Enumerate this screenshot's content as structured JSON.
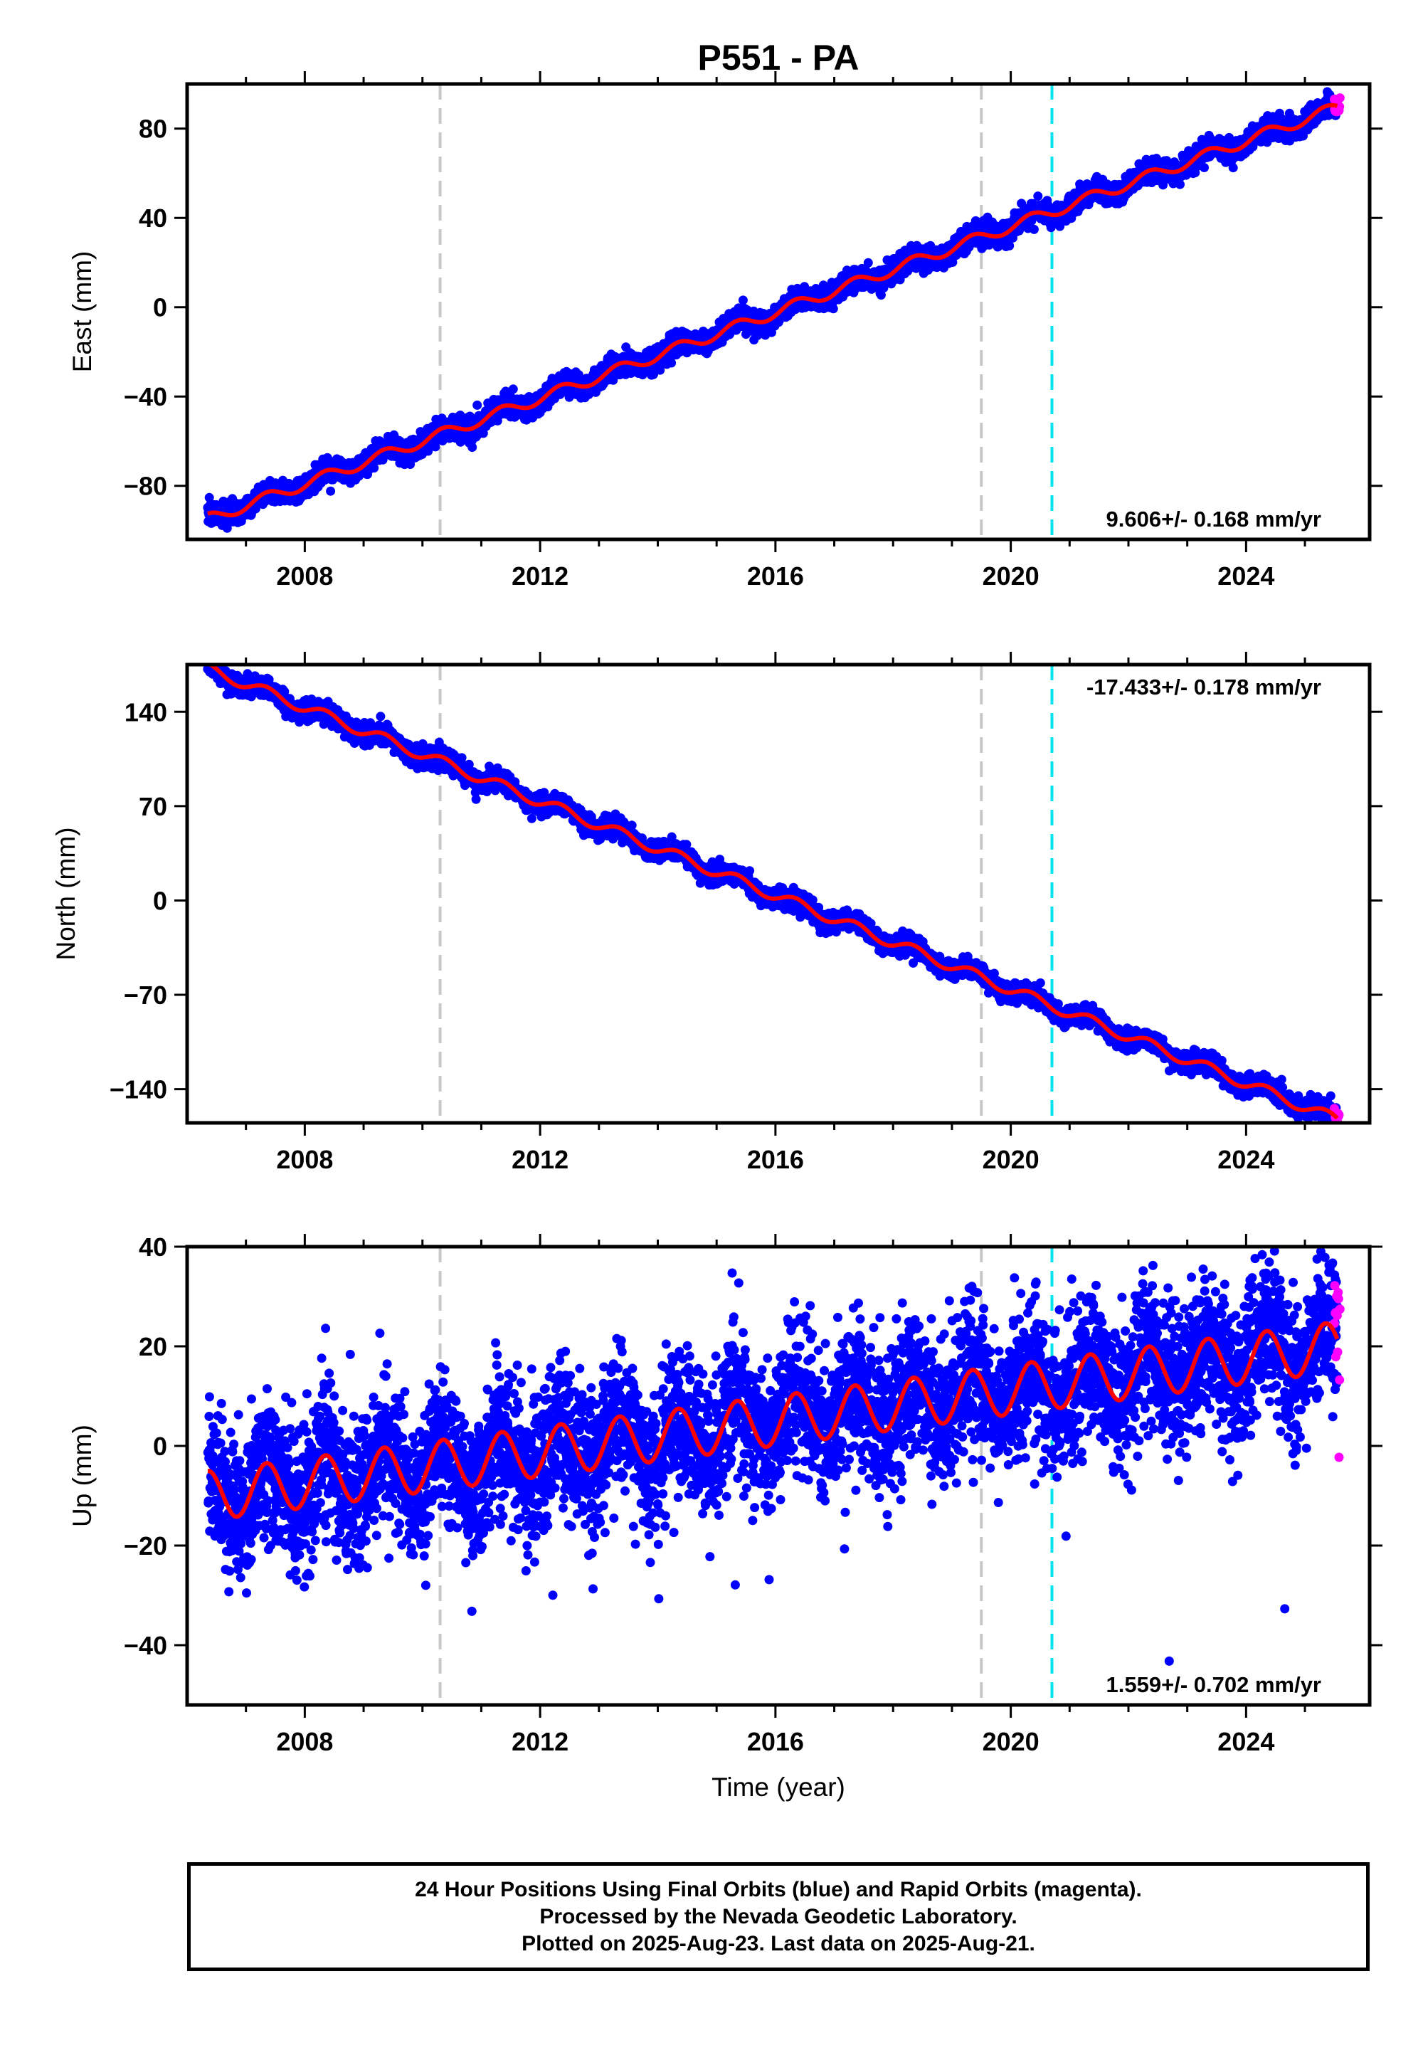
{
  "title": "P551 - PA",
  "footer": {
    "line1": "24 Hour Positions Using Final Orbits (blue) and Rapid Orbits (magenta).",
    "line2": "Processed by the Nevada Geodetic Laboratory.",
    "line3": "Plotted on 2025-Aug-23. Last data on 2025-Aug-21."
  },
  "chart_data": [
    {
      "type": "scatter",
      "component": "east",
      "ylabel": "East (mm)",
      "xlabel": "",
      "xlim": [
        2006.0,
        2026.1
      ],
      "ylim": [
        -104,
        100
      ],
      "xticks": [
        "2008",
        "2012",
        "2016",
        "2020",
        "2024"
      ],
      "yticks": [
        "−80",
        "−40",
        "0",
        "40",
        "80"
      ],
      "ytick_values": [
        -80,
        -40,
        0,
        40,
        80
      ],
      "rate_label": "9.606+/- 0.168 mm/yr",
      "rate_position": "bottom-right",
      "reference_lines": {
        "gray_dashed": [
          2010.3,
          2019.5
        ],
        "cyan_dashed": [
          2020.7
        ]
      },
      "trend": {
        "start_year": 2006.35,
        "start_value": -95,
        "slope_mm_per_yr": 9.606,
        "annual_amplitude": 2.5,
        "scatter_mm": 2.5
      },
      "data_range": [
        2006.35,
        2025.55
      ],
      "rapid_range": [
        2025.5,
        2025.6
      ],
      "fit_line_color": "#ff0000",
      "final_color": "#0000ff",
      "rapid_color": "#ff00ff",
      "grid": false
    },
    {
      "type": "scatter",
      "component": "north",
      "ylabel": "North (mm)",
      "xlabel": "",
      "xlim": [
        2006.0,
        2026.1
      ],
      "ylim": [
        -165,
        175
      ],
      "xticks": [
        "2008",
        "2012",
        "2016",
        "2020",
        "2024"
      ],
      "yticks": [
        "−140",
        "−70",
        "0",
        "70",
        "140"
      ],
      "ytick_values": [
        -140,
        -70,
        0,
        70,
        140
      ],
      "rate_label": "-17.433+/- 0.178 mm/yr",
      "rate_position": "top-right",
      "reference_lines": {
        "gray_dashed": [
          2010.3,
          2019.5
        ],
        "cyan_dashed": [
          2020.7
        ]
      },
      "trend": {
        "start_year": 2006.35,
        "start_value": 172,
        "slope_mm_per_yr": -17.433,
        "annual_amplitude": 4,
        "scatter_mm": 3.5
      },
      "data_range": [
        2006.35,
        2025.55
      ],
      "rapid_range": [
        2025.5,
        2025.6
      ],
      "fit_line_color": "#ff0000",
      "final_color": "#0000ff",
      "rapid_color": "#ff00ff",
      "grid": false
    },
    {
      "type": "scatter",
      "component": "up",
      "ylabel": "Up (mm)",
      "xlabel": "Time (year)",
      "xlim": [
        2006.0,
        2026.1
      ],
      "ylim": [
        -52,
        40
      ],
      "xticks": [
        "2008",
        "2012",
        "2016",
        "2020",
        "2024"
      ],
      "yticks": [
        "−40",
        "−20",
        "0",
        "20",
        "40"
      ],
      "ytick_values": [
        -40,
        -20,
        0,
        20,
        40
      ],
      "rate_label": "1.559+/- 0.702 mm/yr",
      "rate_position": "bottom-right",
      "reference_lines": {
        "gray_dashed": [
          2010.3,
          2019.5
        ],
        "cyan_dashed": [
          2020.7
        ]
      },
      "trend": {
        "start_year": 2006.35,
        "start_value": -10,
        "slope_mm_per_yr": 1.559,
        "annual_amplitude": 5,
        "scatter_mm": 7
      },
      "data_range": [
        2006.35,
        2025.55
      ],
      "rapid_range": [
        2025.5,
        2025.6
      ],
      "fit_line_color": "#ff0000",
      "final_color": "#0000ff",
      "rapid_color": "#ff00ff",
      "grid": false
    }
  ]
}
